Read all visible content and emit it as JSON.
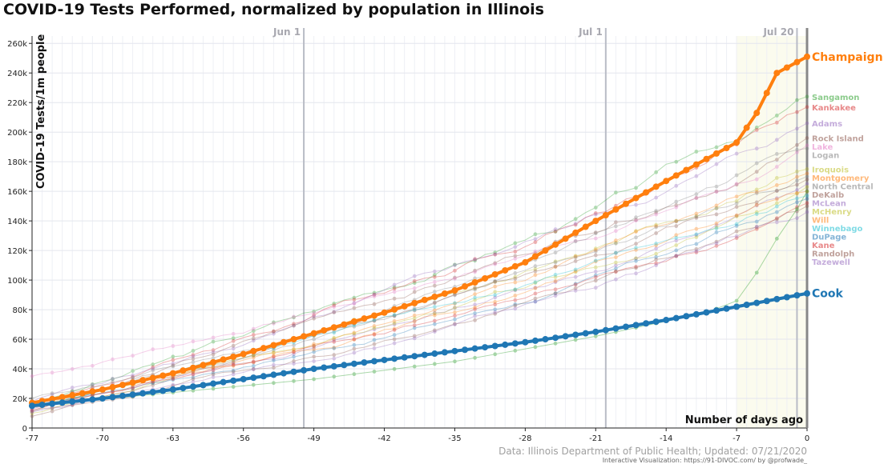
{
  "chart_data": {
    "type": "line",
    "title": "COVID-19 Tests Performed, normalized by population in Illinois",
    "xlabel": "Number of days ago",
    "ylabel": "COVID-19 Tests/1m people",
    "source": "Data: Illinois Department of Public Health; Updated: 07/21/2020",
    "credit": "Interactive Visualization: https://91-DIVOC.com/ by @profwade_",
    "xlim": [
      -77,
      0
    ],
    "ylim": [
      0,
      265000
    ],
    "x_ticks": [
      -77,
      -70,
      -63,
      -56,
      -49,
      -42,
      -35,
      -28,
      -21,
      -14,
      -7,
      0
    ],
    "x_tick_labels": [
      "-77",
      "-70",
      "-63",
      "-56",
      "-49",
      "-42",
      "-35",
      "-28",
      "-21",
      "-14",
      "-7",
      "0"
    ],
    "y_ticks": [
      0,
      20000,
      40000,
      60000,
      80000,
      100000,
      120000,
      140000,
      160000,
      180000,
      200000,
      220000,
      240000,
      260000
    ],
    "y_tick_labels": [
      "0",
      "20k",
      "40k",
      "60k",
      "80k",
      "100k",
      "120k",
      "140k",
      "160k",
      "180k",
      "200k",
      "220k",
      "240k",
      "260k"
    ],
    "date_markers": [
      {
        "label": "Jun 1",
        "x": -50
      },
      {
        "label": "Jul 1",
        "x": -20
      },
      {
        "label": "Jul 20",
        "x": -1
      }
    ],
    "highlighted": [
      {
        "name": "Champaign",
        "color": "#ff7f0e",
        "start": 17000,
        "points": [
          [
            -77,
            17000
          ],
          [
            -70,
            26000
          ],
          [
            -63,
            37000
          ],
          [
            -56,
            50000
          ],
          [
            -49,
            64000
          ],
          [
            -42,
            78000
          ],
          [
            -35,
            93000
          ],
          [
            -28,
            112000
          ],
          [
            -21,
            140000
          ],
          [
            -14,
            167000
          ],
          [
            -7,
            193000
          ],
          [
            -5,
            213000
          ],
          [
            -3,
            240000
          ],
          [
            0,
            251000
          ]
        ]
      },
      {
        "name": "Cook",
        "color": "#1f77b4",
        "start": 15000,
        "points": [
          [
            -77,
            15000
          ],
          [
            -70,
            20000
          ],
          [
            -63,
            26000
          ],
          [
            -56,
            33000
          ],
          [
            -49,
            40000
          ],
          [
            -42,
            46000
          ],
          [
            -35,
            52000
          ],
          [
            -28,
            58000
          ],
          [
            -21,
            65000
          ],
          [
            -14,
            73000
          ],
          [
            -7,
            82000
          ],
          [
            0,
            91000
          ]
        ]
      }
    ],
    "series": [
      {
        "name": "Sangamon",
        "color": "#2ca02c",
        "start": 16000,
        "end": 224000
      },
      {
        "name": "Kankakee",
        "color": "#d62728",
        "start": 15000,
        "end": 217000
      },
      {
        "name": "Adams",
        "color": "#9467bd",
        "start": 18000,
        "end": 206000
      },
      {
        "name": "Rock Island",
        "color": "#8c564b",
        "start": 15000,
        "end": 196000
      },
      {
        "name": "Lake",
        "color": "#e377c2",
        "start": 35000,
        "end": 191000
      },
      {
        "name": "Logan",
        "color": "#7f7f7f",
        "start": 12000,
        "end": 189000
      },
      {
        "name": "Iroquois",
        "color": "#bcbd22",
        "start": 10000,
        "end": 175000
      },
      {
        "name": "Montgomery",
        "color": "#ff7f0e",
        "start": 14000,
        "end": 172000
      },
      {
        "name": "North Central",
        "color": "#7f7f7f",
        "start": 20000,
        "end": 170000
      },
      {
        "name": "DeKalb",
        "color": "#8c564b",
        "start": 11000,
        "end": 168000
      },
      {
        "name": "McLean",
        "color": "#9467bd",
        "start": 13000,
        "end": 165000
      },
      {
        "name": "McHenry",
        "color": "#bcbd22",
        "start": 14000,
        "end": 163000
      },
      {
        "name": "Will",
        "color": "#ff7f0e",
        "start": 15000,
        "end": 160000
      },
      {
        "name": "Winnebago",
        "color": "#17becf",
        "start": 16000,
        "end": 157000
      },
      {
        "name": "DuPage",
        "color": "#1f77b4",
        "start": 14000,
        "end": 155000
      },
      {
        "name": "Kane",
        "color": "#d62728",
        "start": 12000,
        "end": 152000
      },
      {
        "name": "Randolph",
        "color": "#8c564b",
        "start": 8000,
        "end": 150000
      },
      {
        "name": "Tazewell",
        "color": "#9467bd",
        "start": 11000,
        "end": 146000
      }
    ],
    "extra_series": [
      {
        "color": "#2ca02c",
        "start": 15000,
        "shape": "late-spike",
        "points": [
          [
            -77,
            15000
          ],
          [
            -63,
            24000
          ],
          [
            -49,
            33000
          ],
          [
            -35,
            45000
          ],
          [
            -21,
            62000
          ],
          [
            -10,
            78000
          ],
          [
            -7,
            86000
          ],
          [
            -5,
            105000
          ],
          [
            -3,
            128000
          ],
          [
            -1,
            148000
          ],
          [
            0,
            160000
          ]
        ]
      }
    ],
    "legend": "right-end labels",
    "grid": true
  }
}
